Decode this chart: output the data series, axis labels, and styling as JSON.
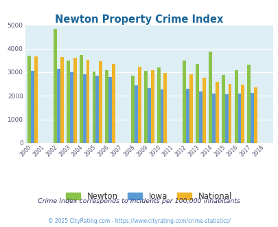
{
  "title": "Newton Property Crime Index",
  "years": [
    "2000",
    "2001",
    "2002",
    "2003",
    "2004",
    "2005",
    "2006",
    "2007",
    "2008",
    "2009",
    "2010",
    "2011",
    "2012",
    "2013",
    "2014",
    "2015",
    "2016",
    "2017",
    "2018"
  ],
  "newton": [
    3700,
    null,
    4820,
    3500,
    3730,
    3030,
    3100,
    null,
    2840,
    3050,
    3190,
    null,
    3490,
    3360,
    3880,
    2880,
    3075,
    3310,
    null
  ],
  "iowa": [
    3050,
    null,
    3140,
    3010,
    2920,
    2840,
    2800,
    null,
    2440,
    2320,
    2270,
    null,
    2300,
    2190,
    2100,
    2060,
    2095,
    2115,
    null
  ],
  "national": [
    3680,
    null,
    3640,
    3620,
    3510,
    3450,
    3350,
    null,
    3220,
    3080,
    2970,
    null,
    2900,
    2770,
    2600,
    2510,
    2480,
    2370,
    null
  ],
  "newton_color": "#8bc34a",
  "iowa_color": "#5b9bd5",
  "national_color": "#f0b428",
  "bg_color": "#ddeef5",
  "ylim": [
    0,
    5000
  ],
  "yticks": [
    0,
    1000,
    2000,
    3000,
    4000,
    5000
  ],
  "note": "Crime Index corresponds to incidents per 100,000 inhabitants",
  "footer": "© 2025 CityRating.com - https://www.cityrating.com/crime-statistics/",
  "title_color": "#1a6699",
  "note_color": "#333366",
  "footer_color": "#5b9bd5",
  "legend_labels": [
    "Newton",
    "Iowa",
    "National"
  ]
}
